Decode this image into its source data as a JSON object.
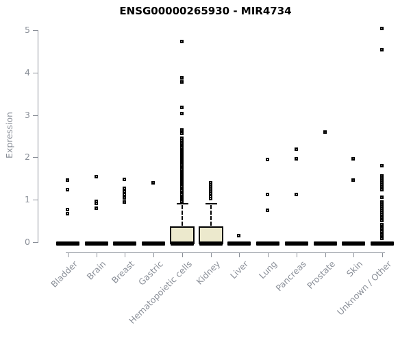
{
  "colors": {
    "box_fill": "#ece9cd",
    "marker": "#000000",
    "axis_text": "#8a8f98",
    "title_text": "#000000",
    "background": "#ffffff"
  },
  "chart_data": {
    "type": "boxplot",
    "title": "ENSG00000265930 - MIR4734",
    "xlabel": "",
    "ylabel": "Expression",
    "ylim": [
      0,
      5
    ],
    "yticks": [
      0,
      1,
      2,
      3,
      4,
      5
    ],
    "grid": false,
    "legend": false,
    "categories": [
      "Bladder",
      "Brain",
      "Breast",
      "Gastric",
      "Hematopoietic cells",
      "Kidney",
      "Liver",
      "Lung",
      "Pancreas",
      "Prostate",
      "Skin",
      "Unknown / Other"
    ],
    "groups": [
      {
        "name": "Bladder",
        "median": 0,
        "q1": 0,
        "q3": 0,
        "outliers": [
          1.45,
          1.23,
          0.76,
          0.67
        ]
      },
      {
        "name": "Brain",
        "median": 0,
        "q1": 0,
        "q3": 0,
        "outliers": [
          1.53,
          0.95,
          0.9,
          0.8
        ]
      },
      {
        "name": "Breast",
        "median": 0,
        "q1": 0,
        "q3": 0,
        "outliers": [
          1.48,
          1.27,
          1.18,
          1.11,
          1.03,
          0.94
        ]
      },
      {
        "name": "Gastric",
        "median": 0,
        "q1": 0,
        "q3": 0,
        "outliers": [
          1.39
        ]
      },
      {
        "name": "Hematopoietic cells",
        "median": 0,
        "q1": 0,
        "q3": 0.36,
        "box": {
          "q1": 0,
          "median": 0,
          "q3": 0.36,
          "whisker_high": 0.91
        },
        "outliers": [
          4.72,
          3.87,
          3.77,
          3.17,
          3.02,
          2.64,
          2.56,
          2.45,
          2.4,
          2.33,
          2.27,
          2.24,
          2.21,
          2.17,
          2.14,
          2.11,
          2.07,
          2.04,
          2.01,
          1.97,
          1.94,
          1.91,
          1.87,
          1.84,
          1.81,
          1.77,
          1.74,
          1.71,
          1.67,
          1.64,
          1.61,
          1.57,
          1.54,
          1.51,
          1.47,
          1.44,
          1.41,
          1.37,
          1.34,
          1.31,
          1.27,
          1.24,
          1.21,
          1.17,
          1.14,
          1.11,
          1.07,
          1.04,
          1.01,
          0.98,
          0.95
        ]
      },
      {
        "name": "Kidney",
        "median": 0,
        "q1": 0,
        "q3": 0.36,
        "box": {
          "q1": 0,
          "median": 0,
          "q3": 0.36,
          "whisker_high": 0.91
        },
        "outliers": [
          1.39,
          1.34,
          1.29,
          1.24,
          1.19,
          1.13,
          1.07,
          1.02
        ]
      },
      {
        "name": "Liver",
        "median": 0,
        "q1": 0,
        "q3": 0,
        "outliers": [
          0.14
        ]
      },
      {
        "name": "Lung",
        "median": 0,
        "q1": 0,
        "q3": 0,
        "outliers": [
          1.94,
          1.12,
          0.74
        ]
      },
      {
        "name": "Pancreas",
        "median": 0,
        "q1": 0,
        "q3": 0,
        "outliers": [
          2.19,
          1.96,
          1.12
        ]
      },
      {
        "name": "Prostate",
        "median": 0,
        "q1": 0,
        "q3": 0,
        "outliers": [
          2.59
        ]
      },
      {
        "name": "Skin",
        "median": 0,
        "q1": 0,
        "q3": 0,
        "outliers": [
          1.96,
          1.46
        ]
      },
      {
        "name": "Unknown / Other",
        "median": 0,
        "q1": 0,
        "q3": 0,
        "outliers": [
          5.03,
          4.53,
          1.8,
          1.56,
          1.51,
          1.46,
          1.41,
          1.36,
          1.3,
          1.23,
          1.05,
          0.94,
          0.89,
          0.84,
          0.79,
          0.74,
          0.69,
          0.64,
          0.59,
          0.5,
          0.41,
          0.32,
          0.24,
          0.16,
          0.08
        ]
      }
    ]
  }
}
